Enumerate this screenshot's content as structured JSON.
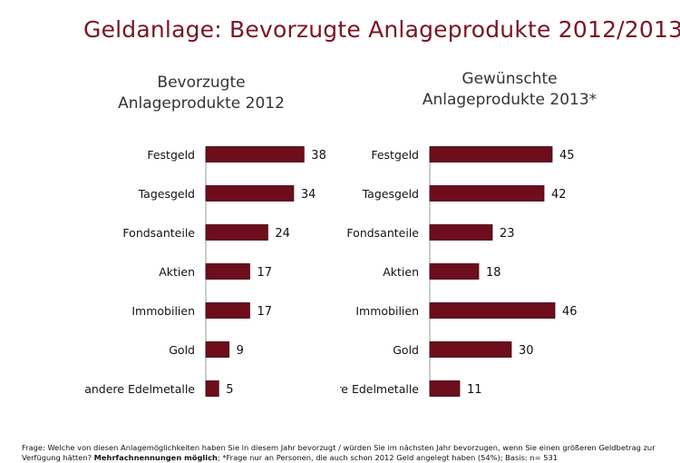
{
  "title": "Geldanlage: Bevorzugte Anlageprodukte 2012/2013",
  "subtitles": {
    "left": [
      "Bevorzugte",
      "Anlageprodukte 2012"
    ],
    "right": [
      "Gewünschte",
      "Anlageprodukte 2013*"
    ]
  },
  "footnote": {
    "part1": "Frage: Welche von diesen Anlagemöglichkeiten haben Sie in diesem Jahr bevorzugt / würden Sie im nächsten Jahr bevorzugen, wenn Sie einen größeren Geldbetrag zur Verfügung hätten?",
    "bold": "Mehrfachnennungen möglich",
    "part2": "; *Frage nur an Personen, die  auch schon 2012 Geld angelegt haben (54%); Basis: n= 531"
  },
  "colors": {
    "bar": "#6e0d1c",
    "title": "#7a1526"
  },
  "chart_data": [
    {
      "type": "bar",
      "orientation": "horizontal",
      "title": "Bevorzugte Anlageprodukte 2012",
      "categories": [
        "Festgeld",
        "Tagesgeld",
        "Fondsanteile",
        "Aktien",
        "Immobilien",
        "Gold",
        "andere Edelmetalle"
      ],
      "values": [
        38,
        34,
        24,
        17,
        17,
        9,
        5
      ],
      "xlim": [
        0,
        50
      ],
      "grid": false,
      "data_labels": true
    },
    {
      "type": "bar",
      "orientation": "horizontal",
      "title": "Gewünschte Anlageprodukte 2013*",
      "categories": [
        "Festgeld",
        "Tagesgeld",
        "Fondsanteile",
        "Aktien",
        "Immobilien",
        "Gold",
        "andere Edelmetalle"
      ],
      "values": [
        45,
        42,
        23,
        18,
        46,
        30,
        11
      ],
      "xlim": [
        0,
        50
      ],
      "grid": false,
      "data_labels": true
    }
  ]
}
